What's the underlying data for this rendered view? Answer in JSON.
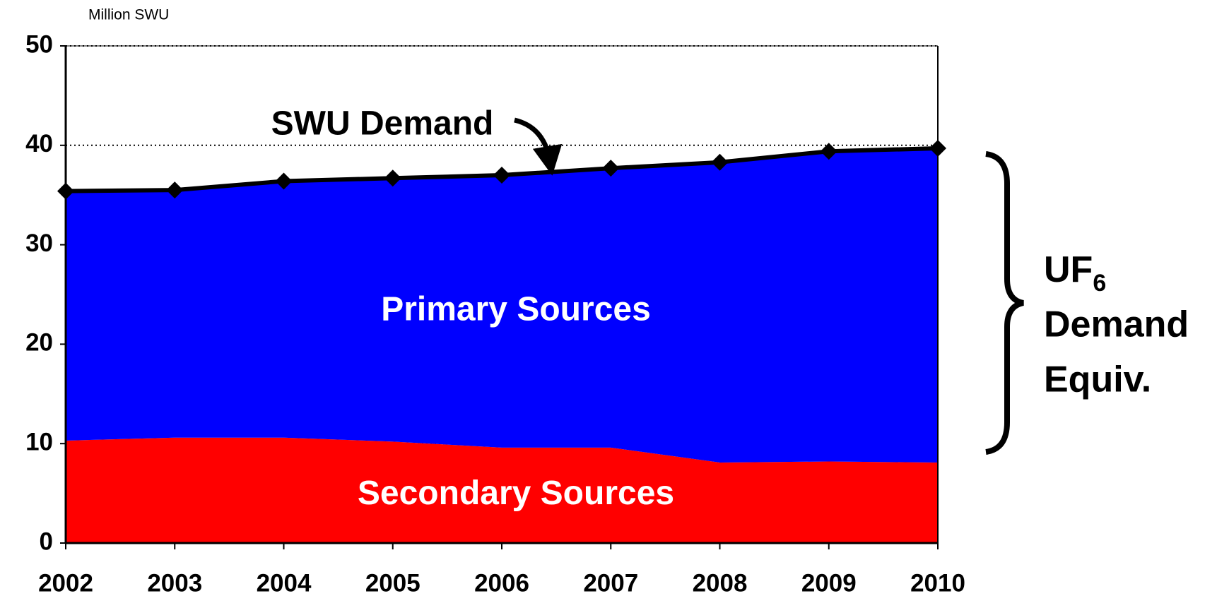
{
  "chart_data": {
    "type": "stacked_area",
    "ylabel": "Million SWU",
    "categories": [
      "2002",
      "2003",
      "2004",
      "2005",
      "2006",
      "2007",
      "2008",
      "2009",
      "2010"
    ],
    "series": [
      {
        "name": "Secondary Sources",
        "color": "#ff0000",
        "values": [
          10.3,
          10.6,
          10.6,
          10.2,
          9.6,
          9.6,
          8.1,
          8.2,
          8.1
        ]
      },
      {
        "name": "Primary Sources",
        "color": "#0000ff",
        "values": [
          25.1,
          24.9,
          25.8,
          26.5,
          27.4,
          28.1,
          30.2,
          31.2,
          31.6
        ]
      },
      {
        "name": "SWU Demand",
        "color": "#000000",
        "type": "line",
        "values": [
          35.4,
          35.5,
          36.4,
          36.7,
          37.0,
          37.7,
          38.3,
          39.4,
          39.7
        ]
      }
    ],
    "annotation": {
      "main": "UF",
      "subscript": "6",
      "line2": "Demand",
      "line3": "Equiv."
    },
    "ylim": [
      0,
      50
    ],
    "yticks": [
      0,
      10,
      20,
      30,
      40,
      50
    ],
    "grid": true
  }
}
